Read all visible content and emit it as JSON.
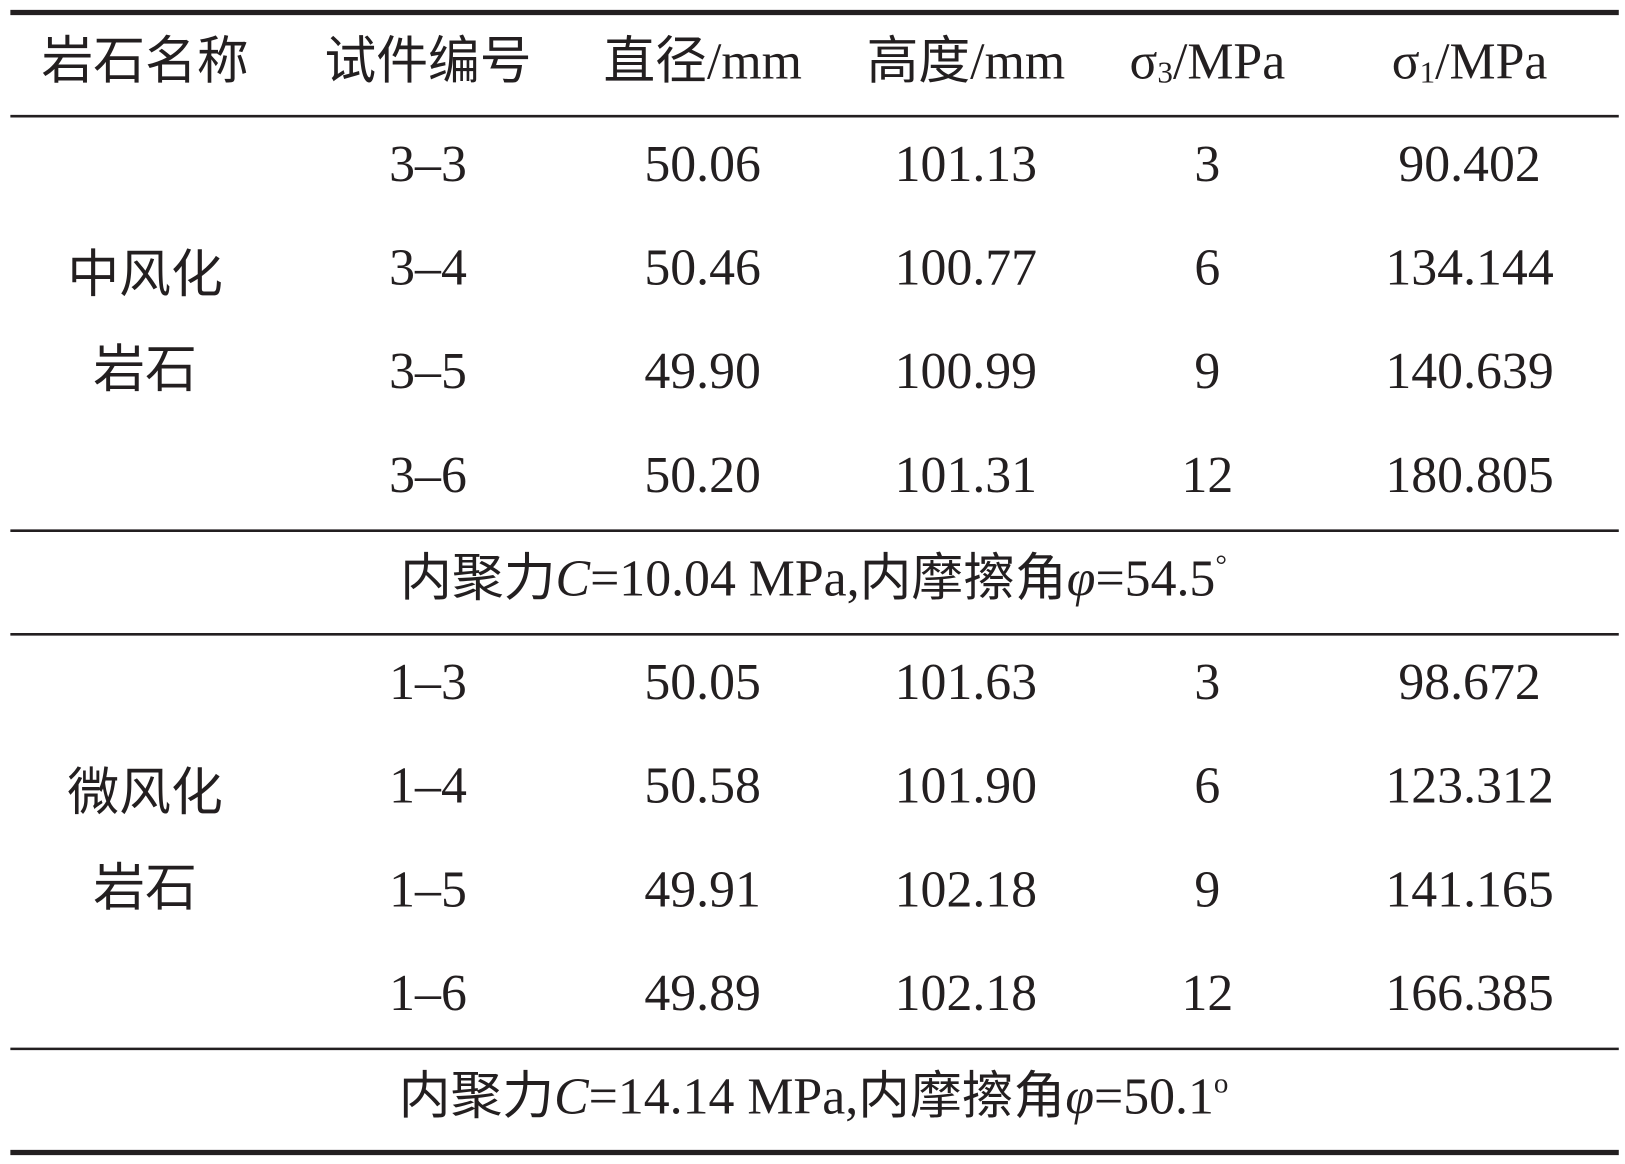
{
  "table": {
    "header": [
      "岩石名称",
      "试件编号",
      "直径/mm",
      "高度/mm",
      [
        "σ",
        "3",
        "/MPa"
      ],
      [
        "σ",
        "1",
        "/MPa"
      ]
    ],
    "groups": [
      {
        "name": [
          "中风化",
          "岩石"
        ],
        "rows": [
          [
            "3–3",
            "50.06",
            "101.13",
            "3",
            "90.402"
          ],
          [
            "3–4",
            "50.46",
            "100.77",
            "6",
            "134.144"
          ],
          [
            "3–5",
            "49.90",
            "100.99",
            "9",
            "140.639"
          ],
          [
            "3–6",
            "50.20",
            "101.31",
            "12",
            "180.805"
          ]
        ],
        "summary": [
          "内聚力",
          "C",
          "=10.04 MPa,内摩擦角",
          "φ",
          "=54.5",
          "°"
        ]
      },
      {
        "name": [
          "微风化",
          "岩石"
        ],
        "rows": [
          [
            "1–3",
            "50.05",
            "101.63",
            "3",
            "98.672"
          ],
          [
            "1–4",
            "50.58",
            "101.90",
            "6",
            "123.312"
          ],
          [
            "1–5",
            "49.91",
            "102.18",
            "9",
            "141.165"
          ],
          [
            "1–6",
            "49.89",
            "102.18",
            "12",
            "166.385"
          ]
        ],
        "summary": [
          "内聚力",
          "C",
          "=14.14 MPa,内摩擦角",
          "φ",
          "=50.1",
          "o"
        ]
      }
    ]
  }
}
